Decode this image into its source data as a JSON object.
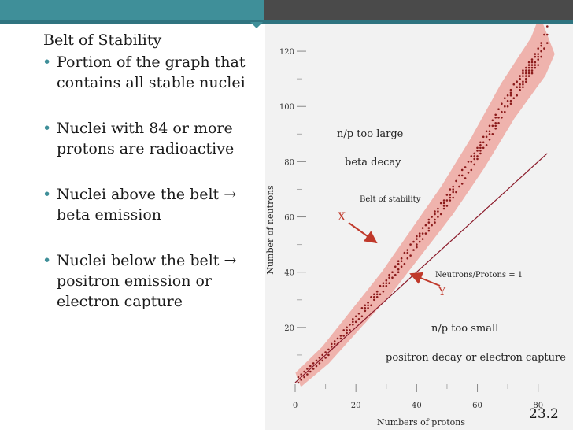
{
  "slide": {
    "title": "Belt of Stability",
    "bullets": [
      {
        "lines": [
          "Portion of the graph that",
          "contains all stable nuclei"
        ]
      },
      {
        "lines": [
          "Nuclei with 84 or more",
          "protons are radioactive"
        ]
      },
      {
        "lines": [
          "Nuclei above the belt →",
          "beta emission"
        ]
      },
      {
        "lines": [
          "Nuclei below the belt →",
          "positron emission or",
          "electron capture"
        ]
      }
    ],
    "bullet_glyph": "•",
    "slide_number": "23.2"
  },
  "colors": {
    "topbar_teal": "#3f8f99",
    "topbar_dark": "#4a4a4a",
    "belt_fill": "#efb3ad",
    "dot_color": "#8b1a1a",
    "line_color": "#8b1a2a",
    "annotation_red": "#c0392b"
  },
  "chart_data": {
    "type": "scatter",
    "xlabel": "Numbers of protons",
    "ylabel": "Number of neutrons",
    "xlim": [
      0,
      85
    ],
    "ylim": [
      0,
      130
    ],
    "x_ticks": [
      "0",
      "20",
      "40",
      "60",
      "80"
    ],
    "y_ticks": [
      "20",
      "40",
      "60",
      "80",
      "100",
      "120"
    ],
    "x_tick_values": [
      0,
      20,
      40,
      60,
      80
    ],
    "y_tick_values": [
      20,
      40,
      60,
      80,
      100,
      120
    ],
    "reference_line": {
      "label": "Neutrons/Protons = 1",
      "from": [
        0,
        0
      ],
      "to": [
        83,
        83
      ]
    },
    "belt_label": "Belt of stability",
    "belt_centerline": [
      [
        1,
        1
      ],
      [
        10,
        10
      ],
      [
        20,
        23
      ],
      [
        30,
        36
      ],
      [
        40,
        51
      ],
      [
        50,
        66
      ],
      [
        60,
        83
      ],
      [
        70,
        102
      ],
      [
        80,
        118
      ],
      [
        83,
        126
      ]
    ],
    "annotations": {
      "upper_title": "n/p too large",
      "upper_sub": "beta decay",
      "lower_title": "n/p too small",
      "lower_sub": "positron decay or electron capture",
      "marker_x": "X",
      "marker_y": "Y"
    }
  }
}
